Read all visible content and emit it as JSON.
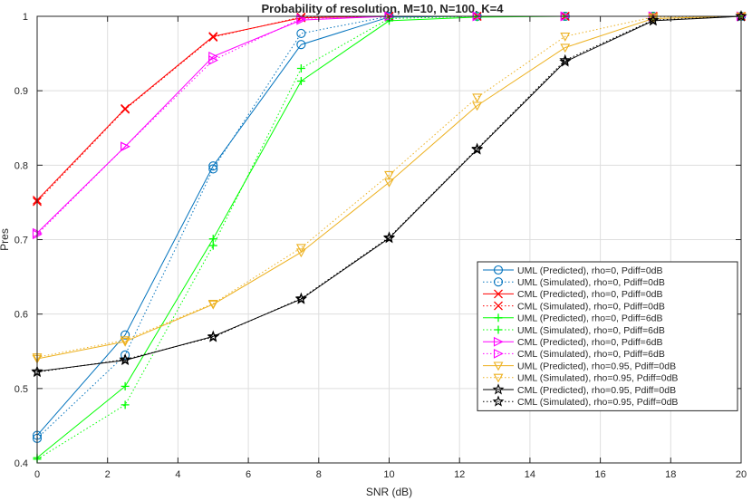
{
  "chart_data": {
    "type": "line",
    "title": "Probability of resolution, M=10, N=100, K=4",
    "xlabel": "SNR (dB)",
    "ylabel": "Pres",
    "xlim": [
      0,
      20
    ],
    "ylim": [
      0.4,
      1
    ],
    "xticks": [
      "0",
      "2",
      "4",
      "6",
      "8",
      "10",
      "12",
      "14",
      "16",
      "18",
      "20"
    ],
    "yticks": [
      "0.4",
      "0.5",
      "0.6",
      "0.7",
      "0.8",
      "0.9",
      "1"
    ],
    "grid": true,
    "legend_position": "bottom-right",
    "x": [
      0,
      2.5,
      5,
      7.5,
      10,
      12.5,
      15,
      17.5,
      20
    ],
    "series": [
      {
        "name": "UML (Predicted), rho=0, Pdiff=0dB",
        "color": "#0072BD",
        "line": "solid",
        "marker": "circle",
        "values": [
          0.437,
          0.572,
          0.799,
          0.962,
          0.999,
          1.0,
          1.0,
          1.0,
          1.0
        ]
      },
      {
        "name": "UML (Simulated), rho=0, Pdiff=0dB",
        "color": "#0072BD",
        "line": "dotted",
        "marker": "circle",
        "values": [
          0.433,
          0.545,
          0.795,
          0.977,
          1.0,
          1.0,
          1.0,
          1.0,
          1.0
        ]
      },
      {
        "name": "CML (Predicted), rho=0, Pdiff=0dB",
        "color": "#FF0000",
        "line": "solid",
        "marker": "x",
        "values": [
          0.753,
          0.876,
          0.973,
          0.998,
          1.0,
          1.0,
          1.0,
          1.0,
          1.0
        ]
      },
      {
        "name": "CML (Simulated), rho=0, Pdiff=0dB",
        "color": "#FF0000",
        "line": "dotted",
        "marker": "x",
        "values": [
          0.751,
          0.875,
          0.972,
          0.999,
          1.0,
          1.0,
          1.0,
          1.0,
          1.0
        ]
      },
      {
        "name": "UML (Predicted), rho=0, Pdiff=6dB",
        "color": "#00FF00",
        "line": "solid",
        "marker": "plus",
        "values": [
          0.407,
          0.503,
          0.701,
          0.913,
          0.994,
          0.999,
          1.0,
          1.0,
          1.0
        ]
      },
      {
        "name": "UML (Simulated), rho=0, Pdiff=6dB",
        "color": "#00FF00",
        "line": "dotted",
        "marker": "plus",
        "values": [
          0.405,
          0.478,
          0.692,
          0.93,
          0.997,
          1.0,
          1.0,
          1.0,
          1.0
        ]
      },
      {
        "name": "CML (Predicted), rho=0, Pdiff=6dB",
        "color": "#FF00FF",
        "line": "solid",
        "marker": "triangle-right",
        "values": [
          0.709,
          0.825,
          0.946,
          0.995,
          1.0,
          1.0,
          1.0,
          1.0,
          1.0
        ]
      },
      {
        "name": "CML (Simulated), rho=0, Pdiff=6dB",
        "color": "#FF00FF",
        "line": "dotted",
        "marker": "triangle-right",
        "values": [
          0.707,
          0.825,
          0.941,
          0.997,
          1.0,
          1.0,
          1.0,
          1.0,
          1.0
        ]
      },
      {
        "name": "UML (Predicted), rho=0.95, Pdiff=0dB",
        "color": "#EDB120",
        "line": "solid",
        "marker": "triangle-down",
        "values": [
          0.54,
          0.563,
          0.613,
          0.683,
          0.777,
          0.88,
          0.958,
          0.997,
          1.0
        ]
      },
      {
        "name": "UML (Simulated), rho=0.95, Pdiff=0dB",
        "color": "#EDB120",
        "line": "dotted",
        "marker": "triangle-down",
        "values": [
          0.542,
          0.565,
          0.614,
          0.689,
          0.787,
          0.891,
          0.973,
          0.999,
          1.0
        ]
      },
      {
        "name": "CML (Predicted), rho=0.95, Pdiff=0dB",
        "color": "#000000",
        "line": "solid",
        "marker": "pentagram",
        "values": [
          0.523,
          0.538,
          0.57,
          0.62,
          0.702,
          0.821,
          0.939,
          0.994,
          1.0
        ]
      },
      {
        "name": "CML (Simulated), rho=0.95, Pdiff=0dB",
        "color": "#000000",
        "line": "dotted",
        "marker": "pentagram",
        "values": [
          0.522,
          0.539,
          0.569,
          0.621,
          0.703,
          0.822,
          0.941,
          0.995,
          1.0
        ]
      }
    ]
  }
}
